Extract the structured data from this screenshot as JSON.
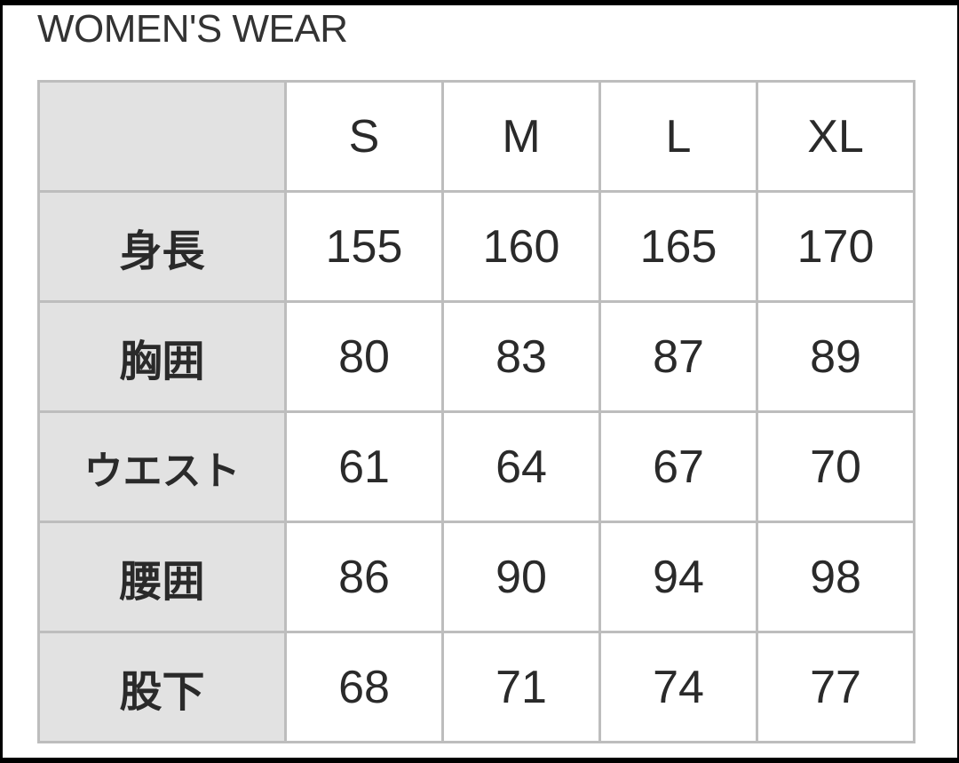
{
  "title": "WOMEN'S WEAR",
  "columns": [
    "S",
    "M",
    "L",
    "XL"
  ],
  "rows": [
    {
      "label": "身長",
      "values": [
        "155",
        "160",
        "165",
        "170"
      ]
    },
    {
      "label": "胸囲",
      "values": [
        "80",
        "83",
        "87",
        "89"
      ]
    },
    {
      "label": "ウエスト",
      "values": [
        "61",
        "64",
        "67",
        "70"
      ]
    },
    {
      "label": "腰囲",
      "values": [
        "86",
        "90",
        "94",
        "98"
      ]
    },
    {
      "label": "股下",
      "values": [
        "68",
        "71",
        "74",
        "77"
      ]
    }
  ],
  "colors": {
    "header_bg": "#e2e2e2",
    "border": "#bdbdbd",
    "text": "#2a2a2a"
  }
}
